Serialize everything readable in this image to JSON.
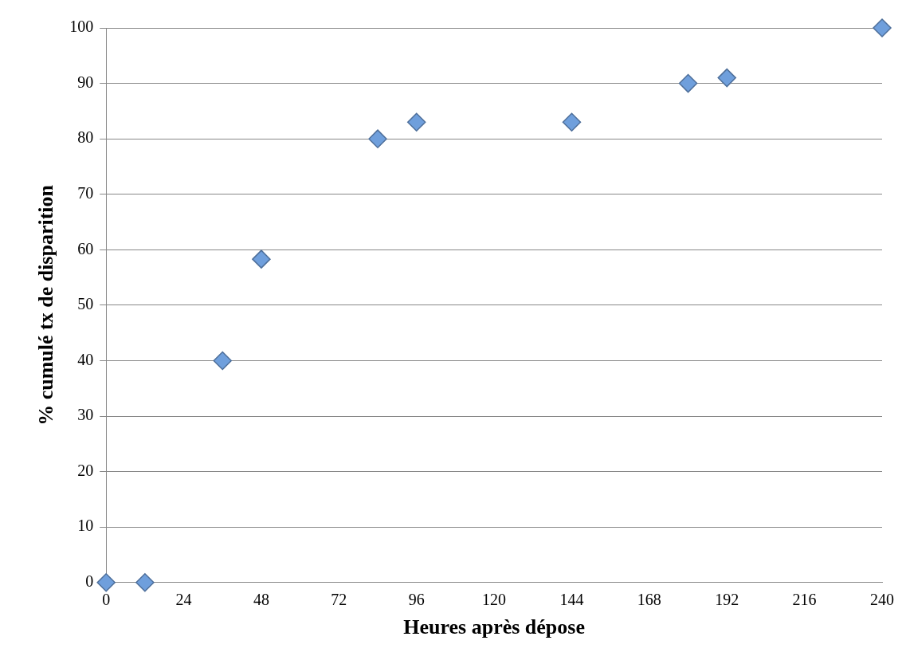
{
  "chart_data": {
    "type": "scatter",
    "xlabel": "Heures après dépose",
    "ylabel": "% cumulé tx de disparition",
    "x": [
      0,
      12,
      36,
      48,
      84,
      96,
      144,
      180,
      192,
      240
    ],
    "series": [
      {
        "color": "#6f9fdc",
        "values": [
          0,
          0,
          40,
          58.3,
          80,
          83,
          83,
          90,
          91,
          100
        ]
      }
    ],
    "xlim": [
      0,
      240
    ],
    "xticks": [
      0,
      24,
      48,
      72,
      96,
      120,
      144,
      168,
      192,
      216,
      240
    ],
    "ylim": [
      0,
      100
    ],
    "yticks": [
      0,
      10,
      20,
      30,
      40,
      50,
      60,
      70,
      80,
      90,
      100
    ],
    "grid": "y",
    "legend": false,
    "marker": "diamond"
  }
}
